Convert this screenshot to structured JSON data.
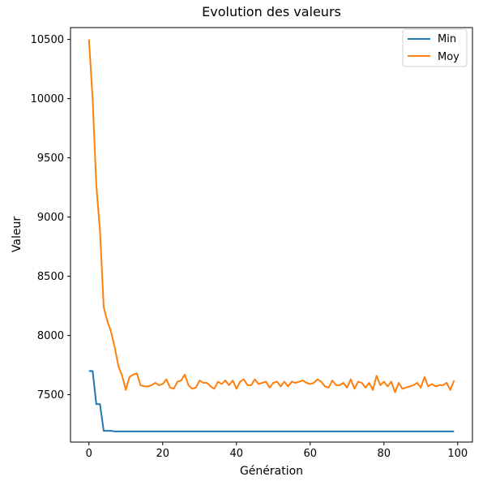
{
  "chart_data": {
    "type": "line",
    "title": "Evolution des valeurs",
    "xlabel": "Génération",
    "ylabel": "Valeur",
    "xlim": [
      -5,
      104
    ],
    "ylim": [
      7100,
      10600
    ],
    "xticks": [
      0,
      20,
      40,
      60,
      80,
      100
    ],
    "yticks": [
      7500,
      8000,
      8500,
      9000,
      9500,
      10000,
      10500
    ],
    "grid": false,
    "legend_position": "top-right",
    "series": [
      {
        "name": "Min",
        "color": "#1f77b4",
        "x": [
          0,
          1,
          2,
          3,
          4,
          5,
          6,
          7,
          8,
          9,
          10,
          11,
          12,
          13,
          14,
          15,
          16,
          17,
          18,
          19,
          20,
          21,
          22,
          23,
          24,
          25,
          26,
          27,
          28,
          29,
          30,
          31,
          32,
          33,
          34,
          35,
          36,
          37,
          38,
          39,
          40,
          41,
          42,
          43,
          44,
          45,
          46,
          47,
          48,
          49,
          50,
          51,
          52,
          53,
          54,
          55,
          56,
          57,
          58,
          59,
          60,
          61,
          62,
          63,
          64,
          65,
          66,
          67,
          68,
          69,
          70,
          71,
          72,
          73,
          74,
          75,
          76,
          77,
          78,
          79,
          80,
          81,
          82,
          83,
          84,
          85,
          86,
          87,
          88,
          89,
          90,
          91,
          92,
          93,
          94,
          95,
          96,
          97,
          98,
          99
        ],
        "values": [
          7700,
          7700,
          7420,
          7420,
          7195,
          7195,
          7195,
          7190,
          7190,
          7190,
          7190,
          7190,
          7190,
          7190,
          7190,
          7190,
          7190,
          7190,
          7190,
          7190,
          7190,
          7190,
          7190,
          7190,
          7190,
          7190,
          7190,
          7190,
          7190,
          7190,
          7190,
          7190,
          7190,
          7190,
          7190,
          7190,
          7190,
          7190,
          7190,
          7190,
          7190,
          7190,
          7190,
          7190,
          7190,
          7190,
          7190,
          7190,
          7190,
          7190,
          7190,
          7190,
          7190,
          7190,
          7190,
          7190,
          7190,
          7190,
          7190,
          7190,
          7190,
          7190,
          7190,
          7190,
          7190,
          7190,
          7190,
          7190,
          7190,
          7190,
          7190,
          7190,
          7190,
          7190,
          7190,
          7190,
          7190,
          7190,
          7190,
          7190,
          7190,
          7190,
          7190,
          7190,
          7190,
          7190,
          7190,
          7190,
          7190,
          7190,
          7190,
          7190,
          7190,
          7190,
          7190,
          7190,
          7190,
          7190,
          7190,
          7190
        ]
      },
      {
        "name": "Moy",
        "color": "#ff7f0e",
        "x": [
          0,
          1,
          2,
          3,
          4,
          5,
          6,
          7,
          8,
          9,
          10,
          11,
          12,
          13,
          14,
          15,
          16,
          17,
          18,
          19,
          20,
          21,
          22,
          23,
          24,
          25,
          26,
          27,
          28,
          29,
          30,
          31,
          32,
          33,
          34,
          35,
          36,
          37,
          38,
          39,
          40,
          41,
          42,
          43,
          44,
          45,
          46,
          47,
          48,
          49,
          50,
          51,
          52,
          53,
          54,
          55,
          56,
          57,
          58,
          59,
          60,
          61,
          62,
          63,
          64,
          65,
          66,
          67,
          68,
          69,
          70,
          71,
          72,
          73,
          74,
          75,
          76,
          77,
          78,
          79,
          80,
          81,
          82,
          83,
          84,
          85,
          86,
          87,
          88,
          89,
          90,
          91,
          92,
          93,
          94,
          95,
          96,
          97,
          98,
          99
        ],
        "values": [
          10500,
          10000,
          9270,
          8880,
          8240,
          8120,
          8030,
          7900,
          7740,
          7660,
          7540,
          7650,
          7670,
          7680,
          7580,
          7570,
          7570,
          7580,
          7600,
          7580,
          7590,
          7630,
          7560,
          7550,
          7610,
          7620,
          7670,
          7580,
          7550,
          7560,
          7620,
          7600,
          7600,
          7570,
          7550,
          7610,
          7590,
          7620,
          7580,
          7620,
          7550,
          7610,
          7630,
          7580,
          7580,
          7630,
          7590,
          7600,
          7610,
          7560,
          7600,
          7610,
          7570,
          7610,
          7570,
          7610,
          7600,
          7610,
          7620,
          7600,
          7590,
          7600,
          7630,
          7610,
          7570,
          7560,
          7620,
          7580,
          7580,
          7600,
          7560,
          7630,
          7550,
          7610,
          7600,
          7560,
          7600,
          7540,
          7660,
          7580,
          7610,
          7570,
          7610,
          7520,
          7600,
          7550,
          7560,
          7570,
          7580,
          7600,
          7560,
          7650,
          7570,
          7590,
          7570,
          7580,
          7580,
          7600,
          7540,
          7620
        ]
      }
    ]
  }
}
